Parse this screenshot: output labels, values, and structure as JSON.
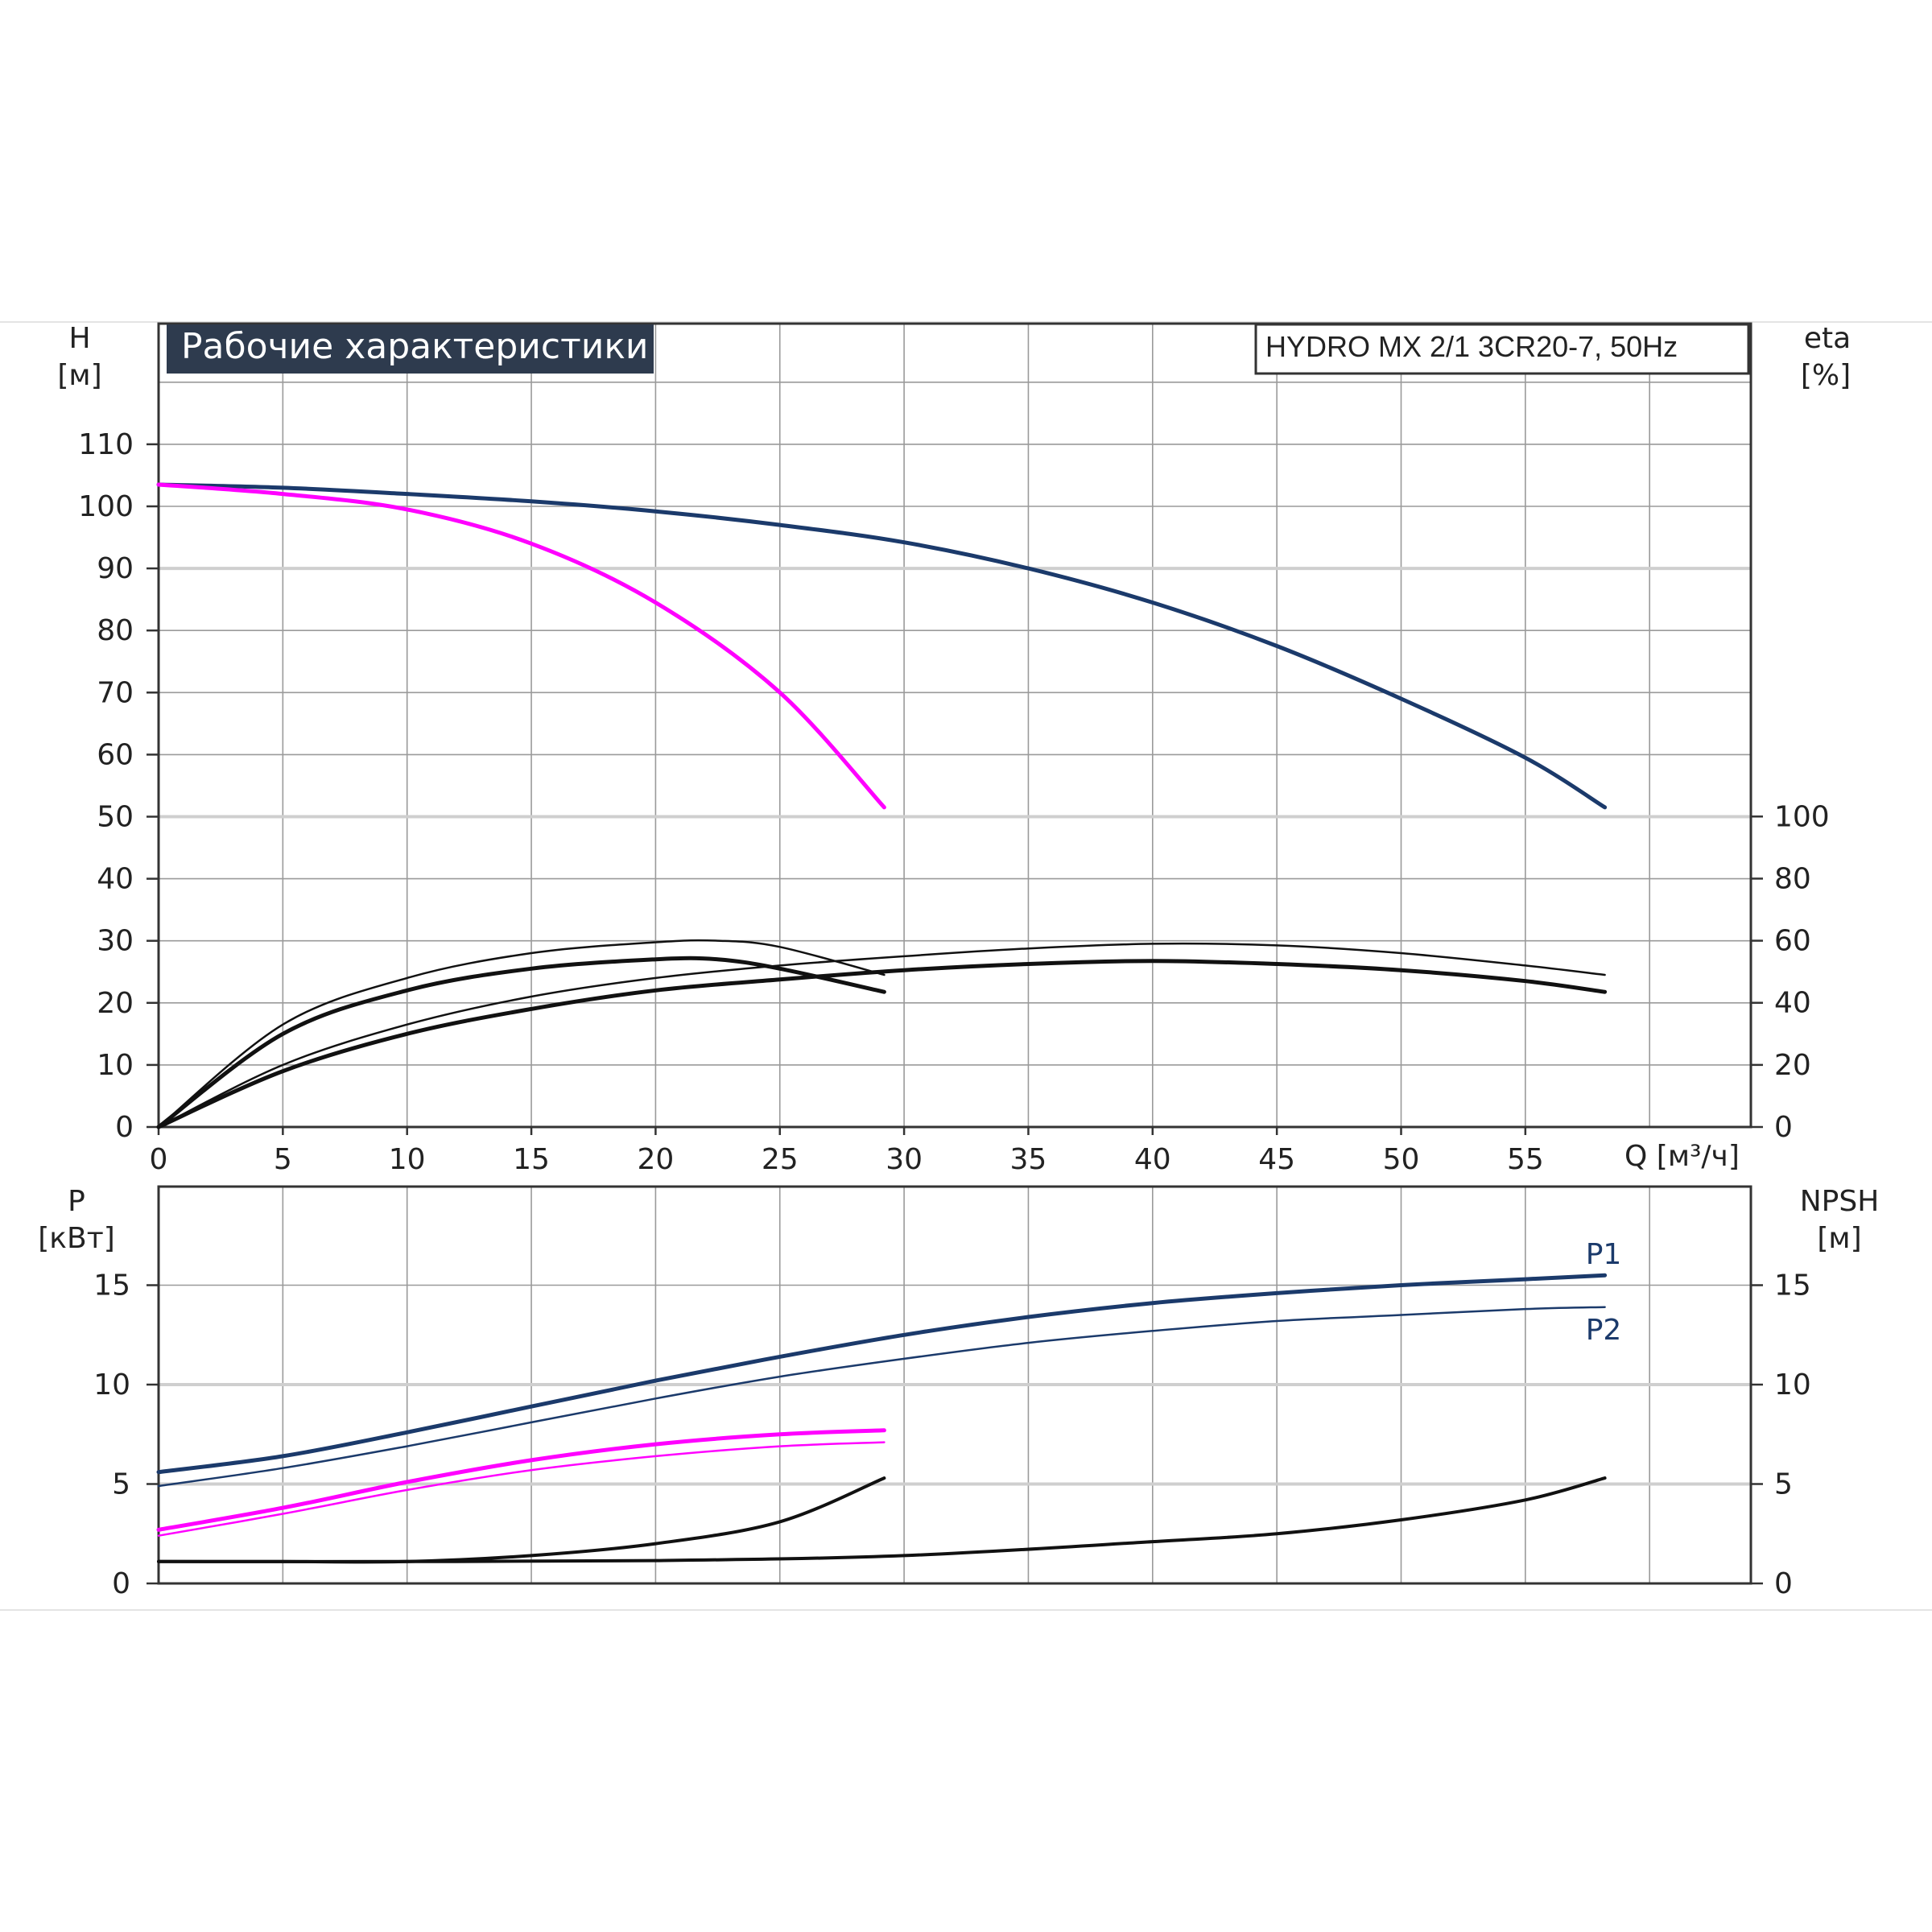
{
  "chart_data": {
    "title": "Рабочие характеристики",
    "model": "HYDRO MX 2/1 3CR20-7, 50Hz",
    "colors": {
      "blue": "#1b3a6b",
      "magenta": "#ff00ff",
      "black": "#111111",
      "title_bg": "#2e3b4e"
    },
    "x": {
      "label": "Q [м³/ч]",
      "min": 0,
      "max": 64,
      "ticks": [
        0,
        5,
        10,
        15,
        20,
        25,
        30,
        35,
        40,
        45,
        50,
        55
      ]
    },
    "top_panel": {
      "left_axis": {
        "name": "H",
        "unit": "[м]",
        "min": 0,
        "max": 120,
        "ticks": [
          0,
          10,
          20,
          30,
          40,
          50,
          60,
          70,
          80,
          90,
          100,
          110
        ]
      },
      "right_axis": {
        "name": "eta",
        "unit": "[%]",
        "min": 0,
        "max": 100,
        "ticks": [
          0,
          20,
          40,
          60,
          80,
          100
        ]
      },
      "series": [
        {
          "id": "h_two_pumps",
          "color": "blue",
          "width": 5,
          "axis": "left",
          "points": [
            [
              0,
              103.5
            ],
            [
              5,
              103
            ],
            [
              10,
              102
            ],
            [
              15,
              100.8
            ],
            [
              20,
              99.2
            ],
            [
              25,
              97
            ],
            [
              30,
              94.2
            ],
            [
              35,
              90
            ],
            [
              40,
              84.5
            ],
            [
              45,
              77.5
            ],
            [
              50,
              69
            ],
            [
              55,
              59.5
            ],
            [
              58.2,
              51.5
            ]
          ]
        },
        {
          "id": "h_one_pump",
          "color": "magenta",
          "width": 5,
          "axis": "left",
          "points": [
            [
              0,
              103.5
            ],
            [
              5,
              102
            ],
            [
              10,
              99.5
            ],
            [
              15,
              94
            ],
            [
              20,
              84.5
            ],
            [
              25,
              70
            ],
            [
              29.2,
              51.5
            ]
          ]
        },
        {
          "id": "eta_two_thin",
          "color": "black",
          "width": 2.5,
          "axis": "right",
          "points": [
            [
              0,
              0
            ],
            [
              5,
              20
            ],
            [
              10,
              33
            ],
            [
              15,
              42
            ],
            [
              20,
              48
            ],
            [
              25,
              52
            ],
            [
              30,
              55
            ],
            [
              35,
              57.5
            ],
            [
              40,
              59
            ],
            [
              45,
              58.5
            ],
            [
              50,
              56
            ],
            [
              55,
              52
            ],
            [
              58.2,
              49
            ]
          ]
        },
        {
          "id": "eta_two_thick",
          "color": "black",
          "width": 5,
          "axis": "right",
          "points": [
            [
              0,
              0
            ],
            [
              5,
              18
            ],
            [
              10,
              30
            ],
            [
              15,
              38
            ],
            [
              20,
              44
            ],
            [
              25,
              47.5
            ],
            [
              30,
              50.5
            ],
            [
              35,
              52.5
            ],
            [
              40,
              53.5
            ],
            [
              45,
              52.5
            ],
            [
              50,
              50.5
            ],
            [
              55,
              47
            ],
            [
              58.2,
              43.5
            ]
          ]
        },
        {
          "id": "eta_one_thin",
          "color": "black",
          "width": 2.5,
          "axis": "right",
          "points": [
            [
              0,
              0
            ],
            [
              5,
              33
            ],
            [
              10,
              48
            ],
            [
              15,
              56
            ],
            [
              20,
              59.5
            ],
            [
              22.5,
              60
            ],
            [
              25,
              58
            ],
            [
              29.2,
              49
            ]
          ]
        },
        {
          "id": "eta_one_thick",
          "color": "black",
          "width": 5,
          "axis": "right",
          "points": [
            [
              0,
              0
            ],
            [
              5,
              30
            ],
            [
              10,
              44
            ],
            [
              15,
              51
            ],
            [
              20,
              54
            ],
            [
              22.5,
              54
            ],
            [
              25,
              51
            ],
            [
              29.2,
              43.5
            ]
          ]
        }
      ]
    },
    "bottom_panel": {
      "left_axis": {
        "name": "P",
        "unit": "[кВт]",
        "min": 0,
        "max": 20,
        "ticks": [
          0,
          5,
          10,
          15
        ]
      },
      "right_axis": {
        "name": "NPSH",
        "unit": "[м]",
        "min": 0,
        "max": 20,
        "ticks": [
          0,
          5,
          10,
          15
        ]
      },
      "series": [
        {
          "id": "p1_two",
          "color": "blue",
          "width": 5,
          "label": "P1",
          "points": [
            [
              0,
              5.6
            ],
            [
              5,
              6.4
            ],
            [
              10,
              7.6
            ],
            [
              15,
              8.9
            ],
            [
              20,
              10.2
            ],
            [
              25,
              11.4
            ],
            [
              30,
              12.5
            ],
            [
              35,
              13.4
            ],
            [
              40,
              14.1
            ],
            [
              45,
              14.6
            ],
            [
              50,
              15
            ],
            [
              55,
              15.3
            ],
            [
              58.2,
              15.5
            ]
          ]
        },
        {
          "id": "p2_two",
          "color": "blue",
          "width": 2.5,
          "label": "P2",
          "points": [
            [
              0,
              4.9
            ],
            [
              5,
              5.8
            ],
            [
              10,
              6.9
            ],
            [
              15,
              8.1
            ],
            [
              20,
              9.3
            ],
            [
              25,
              10.4
            ],
            [
              30,
              11.3
            ],
            [
              35,
              12.1
            ],
            [
              40,
              12.7
            ],
            [
              45,
              13.2
            ],
            [
              50,
              13.5
            ],
            [
              55,
              13.8
            ],
            [
              58.2,
              13.9
            ]
          ]
        },
        {
          "id": "p1_one",
          "color": "magenta",
          "width": 5,
          "points": [
            [
              0,
              2.7
            ],
            [
              5,
              3.8
            ],
            [
              10,
              5.1
            ],
            [
              15,
              6.2
            ],
            [
              20,
              7
            ],
            [
              25,
              7.5
            ],
            [
              29.2,
              7.7
            ]
          ]
        },
        {
          "id": "p2_one",
          "color": "magenta",
          "width": 2.5,
          "points": [
            [
              0,
              2.4
            ],
            [
              5,
              3.5
            ],
            [
              10,
              4.7
            ],
            [
              15,
              5.7
            ],
            [
              20,
              6.4
            ],
            [
              25,
              6.9
            ],
            [
              29.2,
              7.1
            ]
          ]
        },
        {
          "id": "npsh_one",
          "color": "black",
          "width": 4,
          "points": [
            [
              0,
              1.1
            ],
            [
              5,
              1.1
            ],
            [
              10,
              1.1
            ],
            [
              15,
              1.4
            ],
            [
              20,
              2
            ],
            [
              25,
              3.1
            ],
            [
              29.2,
              5.3
            ]
          ]
        },
        {
          "id": "npsh_two",
          "color": "black",
          "width": 4,
          "points": [
            [
              0,
              1.1
            ],
            [
              10,
              1.1
            ],
            [
              20,
              1.15
            ],
            [
              30,
              1.4
            ],
            [
              40,
              2.1
            ],
            [
              45,
              2.5
            ],
            [
              50,
              3.2
            ],
            [
              55,
              4.2
            ],
            [
              58.2,
              5.3
            ]
          ]
        }
      ]
    }
  }
}
